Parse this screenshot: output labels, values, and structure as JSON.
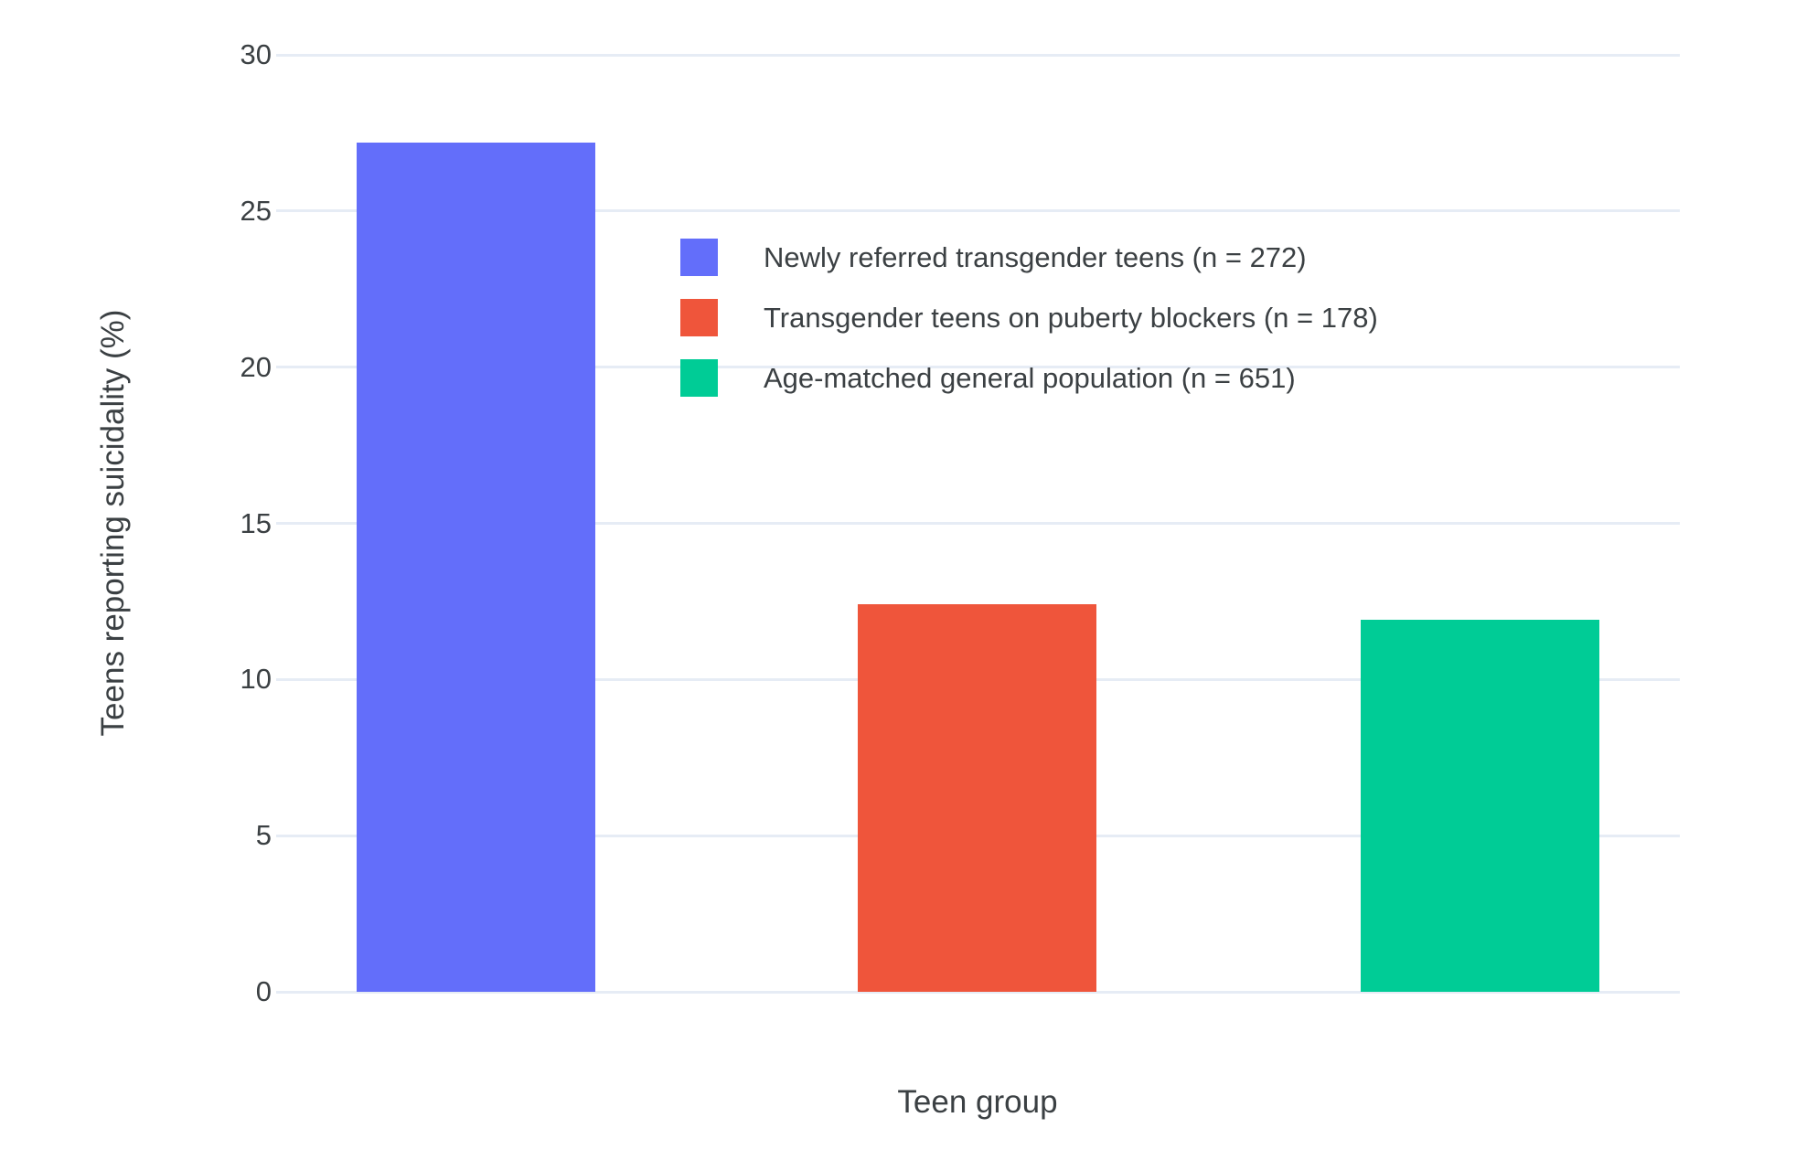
{
  "figure": {
    "background": "#ffffff",
    "grid_color": "#e6ecf5",
    "text_color": "#3b4043"
  },
  "chart_data": {
    "type": "bar",
    "title": "",
    "xlabel": "Teen group",
    "ylabel": "Teens reporting suicidality (%)",
    "ylim": [
      0,
      30
    ],
    "yticks": [
      0,
      5,
      10,
      15,
      20,
      25,
      30
    ],
    "grid": true,
    "x_tick_labels": [],
    "legend_position": "inside top-center of plot, stacked vertically",
    "series": [
      {
        "name": "Newly referred transgender teens (n = 272)",
        "value": 27.2,
        "color": "#636EFA"
      },
      {
        "name": "Transgender teens on puberty blockers (n = 178)",
        "value": 12.4,
        "color": "#EF553B"
      },
      {
        "name": "Age-matched general population (n = 651)",
        "value": 11.9,
        "color": "#00CC96"
      }
    ]
  }
}
